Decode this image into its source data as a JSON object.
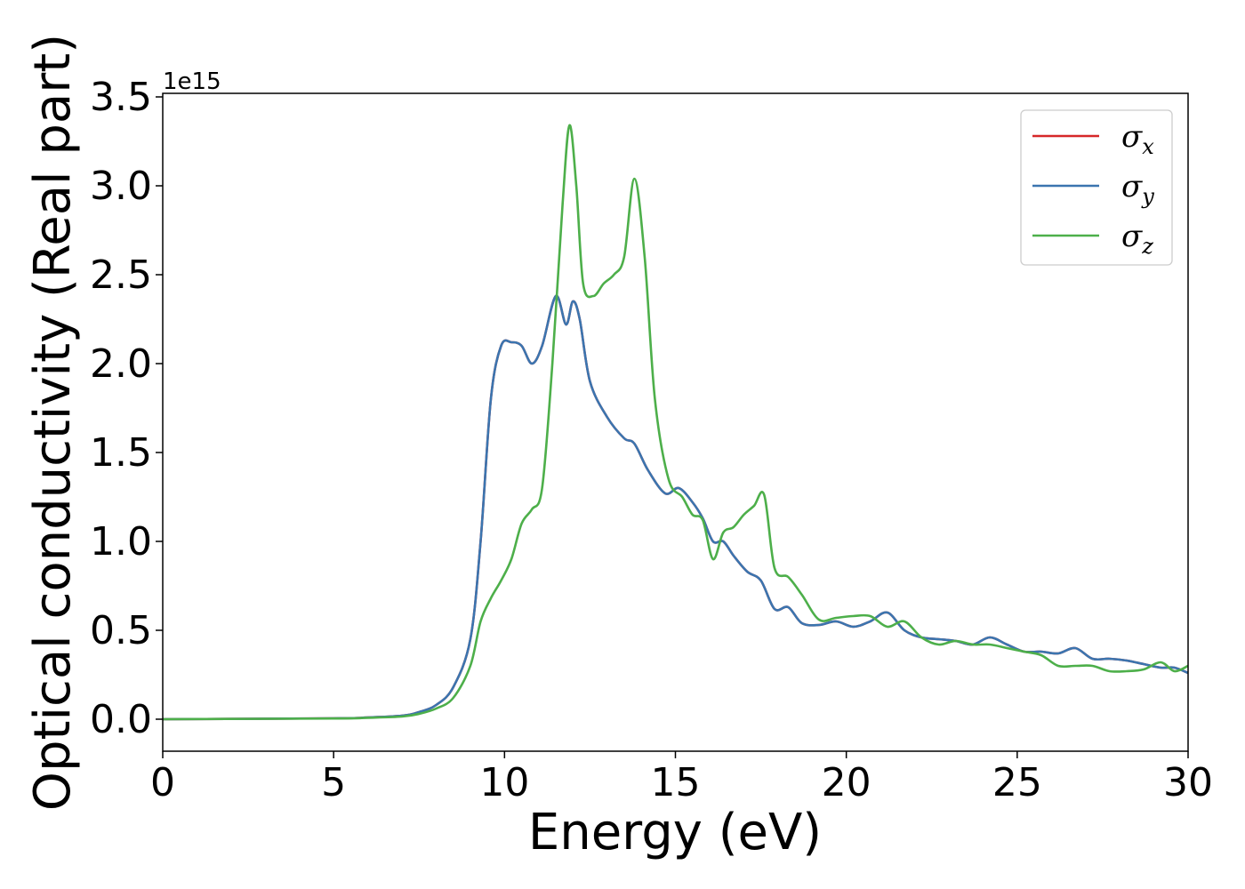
{
  "chart_data": {
    "type": "line",
    "xlabel": "Energy (eV)",
    "ylabel": "Optical conductivity (Real part)",
    "y_offset_label": "1e15",
    "xlim": [
      0,
      30
    ],
    "ylim": [
      -0.18,
      3.52
    ],
    "x_ticks": [
      0,
      5,
      10,
      15,
      20,
      25,
      30
    ],
    "x_tick_labels": [
      "0",
      "5",
      "10",
      "15",
      "20",
      "25",
      "30"
    ],
    "y_ticks": [
      0.0,
      0.5,
      1.0,
      1.5,
      2.0,
      2.5,
      3.0,
      3.5
    ],
    "y_tick_labels": [
      "0.0",
      "0.5",
      "1.0",
      "1.5",
      "2.0",
      "2.5",
      "3.0",
      "3.5"
    ],
    "grid": false,
    "legend_position": "top-right",
    "series": [
      {
        "name": "σx",
        "legend_base": "σ",
        "legend_sub": "x",
        "color": "#d62728",
        "x": [
          0,
          5,
          6,
          7,
          7.5,
          8,
          8.5,
          9,
          9.3,
          9.6,
          9.9,
          10.2,
          10.5,
          10.8,
          11.1,
          11.5,
          11.8,
          12.0,
          12.2,
          12.5,
          13,
          13.5,
          13.8,
          14.2,
          14.7,
          15.1,
          15.5,
          15.8,
          16.1,
          16.4,
          16.7,
          17.1,
          17.5,
          17.9,
          18.3,
          18.7,
          19.2,
          19.7,
          20.2,
          20.7,
          21.2,
          21.7,
          22.2,
          22.7,
          23.2,
          23.7,
          24.2,
          24.7,
          25.2,
          25.7,
          26.2,
          26.7,
          27.2,
          27.7,
          28.2,
          28.7,
          29.2,
          29.6,
          30
        ],
        "y": [
          0,
          0.005,
          0.01,
          0.02,
          0.04,
          0.08,
          0.18,
          0.45,
          1.0,
          1.8,
          2.1,
          2.12,
          2.1,
          2.0,
          2.1,
          2.38,
          2.22,
          2.35,
          2.25,
          1.9,
          1.7,
          1.58,
          1.55,
          1.4,
          1.27,
          1.3,
          1.22,
          1.13,
          1.0,
          1.0,
          0.92,
          0.83,
          0.78,
          0.62,
          0.63,
          0.54,
          0.53,
          0.55,
          0.52,
          0.55,
          0.6,
          0.5,
          0.46,
          0.45,
          0.44,
          0.42,
          0.46,
          0.42,
          0.38,
          0.38,
          0.37,
          0.4,
          0.34,
          0.34,
          0.33,
          0.31,
          0.29,
          0.29,
          0.26
        ]
      },
      {
        "name": "σy",
        "legend_base": "σ",
        "legend_sub": "y",
        "color": "#3b75af",
        "x": [
          0,
          5,
          6,
          7,
          7.5,
          8,
          8.5,
          9,
          9.3,
          9.6,
          9.9,
          10.2,
          10.5,
          10.8,
          11.1,
          11.5,
          11.8,
          12.0,
          12.2,
          12.5,
          13,
          13.5,
          13.8,
          14.2,
          14.7,
          15.1,
          15.5,
          15.8,
          16.1,
          16.4,
          16.7,
          17.1,
          17.5,
          17.9,
          18.3,
          18.7,
          19.2,
          19.7,
          20.2,
          20.7,
          21.2,
          21.7,
          22.2,
          22.7,
          23.2,
          23.7,
          24.2,
          24.7,
          25.2,
          25.7,
          26.2,
          26.7,
          27.2,
          27.7,
          28.2,
          28.7,
          29.2,
          29.6,
          30
        ],
        "y": [
          0,
          0.005,
          0.01,
          0.02,
          0.04,
          0.08,
          0.18,
          0.45,
          1.0,
          1.8,
          2.1,
          2.12,
          2.1,
          2.0,
          2.1,
          2.38,
          2.22,
          2.35,
          2.25,
          1.9,
          1.7,
          1.58,
          1.55,
          1.4,
          1.27,
          1.3,
          1.22,
          1.13,
          1.0,
          1.0,
          0.92,
          0.83,
          0.78,
          0.62,
          0.63,
          0.54,
          0.53,
          0.55,
          0.52,
          0.55,
          0.6,
          0.5,
          0.46,
          0.45,
          0.44,
          0.42,
          0.46,
          0.42,
          0.38,
          0.38,
          0.37,
          0.4,
          0.34,
          0.34,
          0.33,
          0.31,
          0.29,
          0.29,
          0.26
        ]
      },
      {
        "name": "σz",
        "legend_base": "σ",
        "legend_sub": "z",
        "color": "#4daf4a",
        "x": [
          0,
          5,
          6,
          7,
          7.5,
          8,
          8.5,
          9,
          9.3,
          9.6,
          9.9,
          10.2,
          10.5,
          10.8,
          11.1,
          11.4,
          11.7,
          11.9,
          12.1,
          12.3,
          12.6,
          12.9,
          13.2,
          13.5,
          13.8,
          14.1,
          14.4,
          14.8,
          15.2,
          15.5,
          15.8,
          16.1,
          16.4,
          16.7,
          17.0,
          17.3,
          17.6,
          17.9,
          18.3,
          18.7,
          19.2,
          19.7,
          20.2,
          20.7,
          21.2,
          21.7,
          22.2,
          22.7,
          23.2,
          23.7,
          24.2,
          24.7,
          25.2,
          25.7,
          26.2,
          26.7,
          27.2,
          27.7,
          28.2,
          28.7,
          29.2,
          29.6,
          30
        ],
        "y": [
          0,
          0.004,
          0.008,
          0.015,
          0.03,
          0.06,
          0.12,
          0.3,
          0.55,
          0.68,
          0.78,
          0.9,
          1.1,
          1.18,
          1.3,
          2.0,
          2.9,
          3.34,
          3.0,
          2.45,
          2.38,
          2.45,
          2.5,
          2.6,
          3.04,
          2.6,
          1.8,
          1.35,
          1.25,
          1.15,
          1.12,
          0.9,
          1.05,
          1.08,
          1.15,
          1.2,
          1.26,
          0.85,
          0.8,
          0.7,
          0.56,
          0.57,
          0.58,
          0.58,
          0.52,
          0.55,
          0.46,
          0.42,
          0.44,
          0.42,
          0.42,
          0.4,
          0.38,
          0.36,
          0.3,
          0.3,
          0.3,
          0.27,
          0.27,
          0.28,
          0.32,
          0.27,
          0.3
        ]
      }
    ]
  }
}
